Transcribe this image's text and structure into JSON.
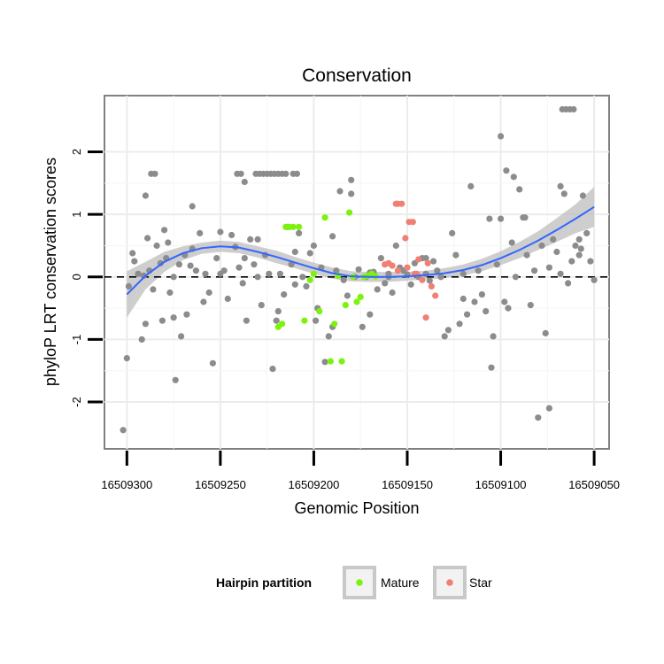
{
  "chart_data": {
    "type": "scatter",
    "title": "Conservation",
    "xlabel": "Genomic Position",
    "ylabel": "phyloP LRT conservation scores",
    "xlim": [
      16509312,
      16509042
    ],
    "ylim": [
      -2.75,
      2.9
    ],
    "x_reversed": true,
    "x_ticks": [
      16509300,
      16509250,
      16509200,
      16509150,
      16509100,
      16509050
    ],
    "y_ticks": [
      2,
      1,
      0,
      -1,
      -2
    ],
    "y_tick_labels": [
      "2",
      "1",
      "0",
      "-1",
      "-2"
    ],
    "grid": true,
    "reference_line": {
      "y": 0,
      "style": "dashed"
    },
    "legend": {
      "title": "Hairpin partition",
      "placement": "bottom",
      "entries": [
        {
          "name": "Mature",
          "color": "#7cf30d"
        },
        {
          "name": "Star",
          "color": "#f08073"
        }
      ]
    },
    "colors": {
      "other": "#8c8c8c",
      "smooth": "#3366ff",
      "band": "#bdbdbd"
    },
    "smooth": {
      "x": [
        16509300,
        16509290,
        16509280,
        16509270,
        16509260,
        16509250,
        16509240,
        16509230,
        16509220,
        16509210,
        16509200,
        16509190,
        16509180,
        16509170,
        16509160,
        16509150,
        16509140,
        16509130,
        16509120,
        16509110,
        16509100,
        16509090,
        16509080,
        16509070,
        16509060,
        16509050
      ],
      "y": [
        -0.28,
        0.02,
        0.24,
        0.38,
        0.46,
        0.49,
        0.47,
        0.4,
        0.32,
        0.23,
        0.14,
        0.06,
        0.01,
        0.0,
        0.0,
        0.01,
        0.03,
        0.06,
        0.11,
        0.19,
        0.3,
        0.43,
        0.58,
        0.75,
        0.93,
        1.12
      ],
      "lower": [
        -0.65,
        -0.2,
        0.08,
        0.27,
        0.37,
        0.4,
        0.38,
        0.31,
        0.22,
        0.14,
        0.05,
        -0.03,
        -0.07,
        -0.08,
        -0.08,
        -0.06,
        -0.04,
        -0.02,
        0.02,
        0.09,
        0.19,
        0.3,
        0.43,
        0.56,
        0.7,
        0.8
      ],
      "upper": [
        0.09,
        0.24,
        0.4,
        0.49,
        0.55,
        0.58,
        0.56,
        0.49,
        0.42,
        0.32,
        0.23,
        0.15,
        0.09,
        0.08,
        0.08,
        0.08,
        0.1,
        0.14,
        0.2,
        0.29,
        0.41,
        0.56,
        0.73,
        0.94,
        1.16,
        1.44
      ]
    },
    "points": {
      "Other": {
        "x": [
          16509302,
          16509300,
          16509299,
          16509297,
          16509296,
          16509294,
          16509292,
          16509291,
          16509290,
          16509289,
          16509288,
          16509286,
          16509284,
          16509282,
          16509281,
          16509280,
          16509279,
          16509278,
          16509277,
          16509275,
          16509274,
          16509272,
          16509271,
          16509269,
          16509268,
          16509266,
          16509265,
          16509263,
          16509261,
          16509259,
          16509258,
          16509256,
          16509254,
          16509252,
          16509250,
          16509248,
          16509246,
          16509244,
          16509242,
          16509240,
          16509238,
          16509236,
          16509234,
          16509232,
          16509230,
          16509228,
          16509226,
          16509224,
          16509222,
          16509220,
          16509218,
          16509216,
          16509214,
          16509212,
          16509210,
          16509208,
          16509206,
          16509204,
          16509202,
          16509200,
          16509198,
          16509196,
          16509194,
          16509192,
          16509190,
          16509188,
          16509186,
          16509184,
          16509182,
          16509180,
          16509178,
          16509176,
          16509174,
          16509172,
          16509170,
          16509168,
          16509166,
          16509164,
          16509162,
          16509160,
          16509158,
          16509156,
          16509154,
          16509152,
          16509150,
          16509148,
          16509146,
          16509144,
          16509142,
          16509140,
          16509138,
          16509136,
          16509134,
          16509132,
          16509130,
          16509128,
          16509126,
          16509124,
          16509122,
          16509120,
          16509118,
          16509116,
          16509114,
          16509112,
          16509110,
          16509108,
          16509106,
          16509104,
          16509102,
          16509100,
          16509098,
          16509096,
          16509094,
          16509092,
          16509090,
          16509088,
          16509086,
          16509084,
          16509082,
          16509080,
          16509078,
          16509076,
          16509074,
          16509072,
          16509070,
          16509068,
          16509066,
          16509064,
          16509062,
          16509060,
          16509058,
          16509056,
          16509054,
          16509052,
          16509050,
          16509057,
          16509250,
          16509230,
          16509210,
          16509190,
          16509170,
          16509160,
          16509140,
          16509120,
          16509290,
          16509275,
          16509265,
          16509237,
          16509219,
          16509199,
          16509180,
          16509100,
          16509105,
          16509087,
          16509097,
          16509093,
          16509058,
          16509068,
          16509074,
          16509241,
          16509239,
          16509237,
          16509231,
          16509229,
          16509227,
          16509225,
          16509223,
          16509221,
          16509219,
          16509217,
          16509215,
          16509211,
          16509209,
          16509287,
          16509285,
          16509067,
          16509065,
          16509063,
          16509061
        ],
        "y": [
          -2.45,
          -1.3,
          -0.15,
          0.38,
          0.25,
          0.05,
          -1.0,
          0.02,
          -0.75,
          0.62,
          0.1,
          -0.2,
          0.5,
          0.22,
          -0.7,
          0.75,
          0.3,
          0.55,
          -0.25,
          0.0,
          -1.65,
          0.2,
          -0.95,
          0.35,
          -0.6,
          0.18,
          1.13,
          0.1,
          0.7,
          -0.4,
          0.05,
          -0.25,
          -1.38,
          0.3,
          0.72,
          0.1,
          -0.35,
          0.67,
          0.48,
          0.15,
          -0.1,
          -0.7,
          0.6,
          0.2,
          0.0,
          -0.45,
          0.35,
          0.05,
          -1.47,
          -0.7,
          0.05,
          -0.28,
          0.8,
          0.2,
          0.4,
          0.7,
          0.0,
          -0.15,
          0.38,
          0.5,
          -0.5,
          0.15,
          -1.36,
          -0.95,
          0.65,
          0.1,
          1.37,
          -0.05,
          -0.3,
          1.33,
          0.0,
          0.12,
          -0.8,
          0.0,
          -0.6,
          0.08,
          -0.2,
          0.3,
          -0.1,
          0.05,
          -0.25,
          0.5,
          0.15,
          0.1,
          0.04,
          -0.12,
          0.22,
          0.0,
          0.3,
          0.05,
          -0.06,
          0.25,
          0.1,
          0.0,
          -0.95,
          -0.85,
          0.7,
          0.35,
          -0.75,
          0.05,
          -0.6,
          1.45,
          -0.4,
          0.1,
          -0.28,
          -0.55,
          0.93,
          -0.95,
          0.2,
          0.93,
          -0.4,
          -0.5,
          0.55,
          0.0,
          1.4,
          0.95,
          0.35,
          -0.45,
          0.1,
          -2.25,
          0.5,
          -0.9,
          0.15,
          0.6,
          0.4,
          0.05,
          1.33,
          -0.1,
          0.25,
          0.5,
          0.35,
          1.3,
          0.7,
          0.25,
          -0.05,
          0.45,
          0.05,
          0.6,
          -0.12,
          -0.8,
          0.07,
          0.0,
          0.3,
          -0.35,
          1.3,
          -0.65,
          0.45,
          0.3,
          -0.55,
          -0.7,
          1.55,
          2.25,
          -1.45,
          0.95,
          1.7,
          1.6,
          0.6,
          1.45,
          -2.1,
          1.65,
          1.65,
          1.52,
          1.65,
          1.65,
          1.65,
          1.65,
          1.65,
          1.65,
          1.65,
          1.65,
          1.65,
          1.65,
          1.65,
          1.65,
          1.65,
          2.68,
          2.68,
          2.68,
          2.68
        ]
      },
      "Mature": {
        "x": [
          16509219,
          16509217,
          16509215,
          16509213,
          16509211,
          16509208,
          16509205,
          16509202,
          16509200,
          16509197,
          16509194,
          16509191,
          16509189,
          16509185,
          16509183,
          16509187,
          16509181,
          16509179,
          16509177,
          16509175,
          16509173,
          16509171,
          16509169,
          16509167
        ],
        "y": [
          -0.8,
          -0.75,
          0.8,
          0.8,
          0.8,
          0.8,
          -0.7,
          -0.05,
          0.05,
          -0.55,
          0.95,
          -1.35,
          -0.75,
          -1.35,
          -0.45,
          0.02,
          1.03,
          0.0,
          -0.4,
          -0.32,
          0.0,
          0.02,
          0.05,
          0.01
        ]
      },
      "Star": {
        "x": [
          16509162,
          16509160,
          16509158,
          16509156,
          16509155,
          16509153,
          16509151,
          16509149,
          16509147,
          16509146,
          16509144,
          16509142,
          16509140,
          16509139,
          16509137,
          16509135,
          16509155,
          16509150,
          16509145
        ],
        "y": [
          0.2,
          0.22,
          0.18,
          1.17,
          1.17,
          1.17,
          0.62,
          0.88,
          0.88,
          0.05,
          0.28,
          -0.05,
          -0.65,
          0.22,
          -0.15,
          -0.3,
          0.1,
          0.15,
          0.05
        ]
      }
    }
  }
}
